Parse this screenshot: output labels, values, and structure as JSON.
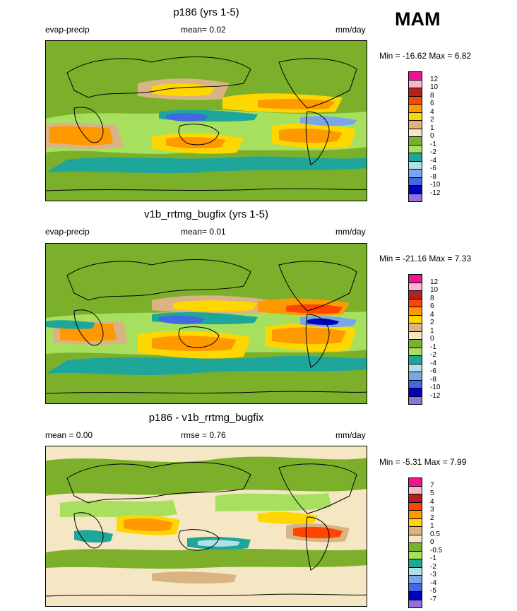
{
  "season": "MAM",
  "panels": [
    {
      "title": "p186 (yrs 1-5)",
      "left_label": "evap-precip",
      "center_label": "mean=  0.02",
      "units": "mm/day",
      "minmax": "Min = -16.62 Max =   6.82",
      "colorbar": {
        "labels": [
          "12",
          "10",
          "8",
          "6",
          "4",
          "2",
          "1",
          "0",
          "-1",
          "-2",
          "-4",
          "-6",
          "-8",
          "-10",
          "-12"
        ],
        "colors": [
          "#f0158f",
          "#f7b6cd",
          "#b22222",
          "#ff4500",
          "#ff9900",
          "#ffd700",
          "#d9b383",
          "#f5e6c4",
          "#7cb02b",
          "#a6e05e",
          "#1fa69a",
          "#afe0e6",
          "#7aa5e8",
          "#4169e1",
          "#0000bf",
          "#9370db"
        ]
      }
    },
    {
      "title": "v1b_rrtmg_bugfix (yrs 1-5)",
      "left_label": "evap-precip",
      "center_label": "mean=  0.01",
      "units": "mm/day",
      "minmax": "Min = -21.16 Max =   7.33",
      "colorbar": {
        "labels": [
          "12",
          "10",
          "8",
          "6",
          "4",
          "2",
          "1",
          "0",
          "-1",
          "-2",
          "-4",
          "-6",
          "-8",
          "-10",
          "-12"
        ],
        "colors": [
          "#f0158f",
          "#f7b6cd",
          "#b22222",
          "#ff4500",
          "#ff9900",
          "#ffd700",
          "#d9b383",
          "#f5e6c4",
          "#7cb02b",
          "#a6e05e",
          "#1fa69a",
          "#afe0e6",
          "#7aa5e8",
          "#4169e1",
          "#0000bf",
          "#9370db"
        ]
      }
    },
    {
      "title": "p186 - v1b_rrtmg_bugfix",
      "left_label": "mean =   0.00",
      "center_label": "rmse =   0.76",
      "units": "mm/day",
      "minmax": "Min =  -5.31 Max =   7.99",
      "colorbar": {
        "labels": [
          "7",
          "5",
          "4",
          "3",
          "2",
          "1",
          "0.5",
          "0",
          "-0.5",
          "-1",
          "-2",
          "-3",
          "-4",
          "-5",
          "-7"
        ],
        "colors": [
          "#f0158f",
          "#f7b6cd",
          "#b22222",
          "#ff4500",
          "#ff9900",
          "#ffd700",
          "#d9b383",
          "#f5e6c4",
          "#7cb02b",
          "#a6e05e",
          "#1fa69a",
          "#afe0e6",
          "#7aa5e8",
          "#4169e1",
          "#0000bf",
          "#9370db"
        ]
      }
    }
  ]
}
